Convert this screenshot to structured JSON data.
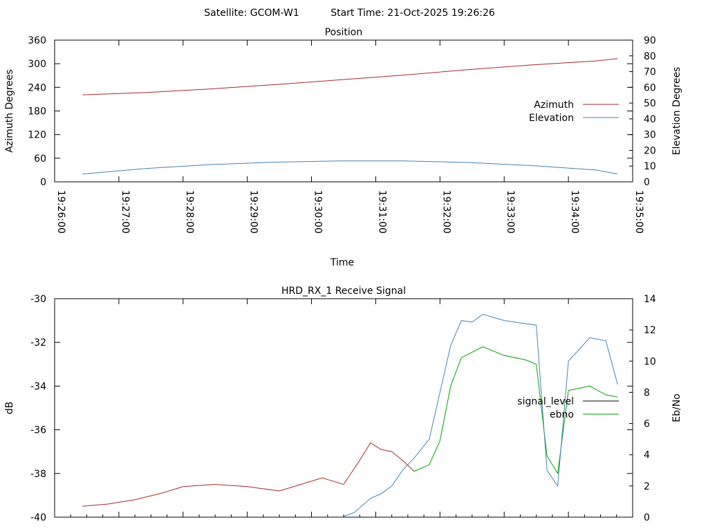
{
  "header": {
    "satellite": "Satellite: GCOM-W1",
    "start_time": "Start Time: 21-Oct-2025 19:26:26"
  },
  "chart_data": [
    {
      "type": "line",
      "title": "Position",
      "xlabel": "Time",
      "ylabel": "Azimuth Degrees",
      "y2label": "Elevation Degrees",
      "x_ticks": [
        "19:26:00",
        "19:27:00",
        "19:28:00",
        "19:29:00",
        "19:30:00",
        "19:31:00",
        "19:32:00",
        "19:33:00",
        "19:34:00",
        "19:35:00"
      ],
      "xlim": [
        "19:26:00",
        "19:35:00"
      ],
      "ylim": [
        0,
        360
      ],
      "y_ticks": [
        0,
        60,
        120,
        180,
        240,
        300,
        360
      ],
      "y2lim": [
        0,
        90
      ],
      "y2_ticks": [
        0,
        10,
        20,
        30,
        40,
        50,
        60,
        70,
        80,
        90
      ],
      "legend_position": "right",
      "series": [
        {
          "name": "Azimuth",
          "axis": "y",
          "color": "#a52a2a",
          "x": [
            "19:26:26",
            "19:27:26",
            "19:28:26",
            "19:29:26",
            "19:30:26",
            "19:31:26",
            "19:32:26",
            "19:33:26",
            "19:34:26",
            "19:34:46"
          ],
          "values": [
            221,
            227,
            236,
            247,
            259,
            271,
            285,
            297,
            307,
            313
          ]
        },
        {
          "name": "Elevation",
          "axis": "y2",
          "color": "#4682b4",
          "x": [
            "19:26:26",
            "19:27:26",
            "19:28:26",
            "19:29:26",
            "19:30:26",
            "19:31:26",
            "19:32:26",
            "19:33:26",
            "19:34:26",
            "19:34:46"
          ],
          "values": [
            5,
            8.5,
            11,
            12.5,
            13.3,
            13.3,
            12.3,
            10.3,
            7.5,
            5
          ]
        }
      ]
    },
    {
      "type": "line",
      "title": "HRD_RX_1 Receive Signal",
      "ylabel": "dB",
      "y2label": "Eb/No",
      "xlim": [
        "19:26:00",
        "19:35:00"
      ],
      "ylim": [
        -40,
        -30
      ],
      "y_ticks": [
        -40,
        -38,
        -36,
        -34,
        -32,
        -30
      ],
      "y2lim": [
        0,
        14
      ],
      "y2_ticks": [
        0,
        2,
        4,
        6,
        8,
        10,
        12,
        14
      ],
      "legend_position": "right",
      "legend": [
        {
          "name": "signal_level",
          "color": "#000000"
        },
        {
          "name": "ebno",
          "color": "#00a000"
        }
      ],
      "series": [
        {
          "name": "signal_level",
          "axis": "y",
          "segment_colors": [
            "#a52a2a",
            "#00a000"
          ],
          "segment_split": "19:31:36",
          "x": [
            "19:26:26",
            "19:26:50",
            "19:27:15",
            "19:27:40",
            "19:28:00",
            "19:28:30",
            "19:29:00",
            "19:29:30",
            "19:29:50",
            "19:30:10",
            "19:30:30",
            "19:30:45",
            "19:30:55",
            "19:31:05",
            "19:31:15",
            "19:31:25",
            "19:31:36",
            "19:31:50",
            "19:32:00",
            "19:32:10",
            "19:32:20",
            "19:32:40",
            "19:33:00",
            "19:33:20",
            "19:33:30",
            "19:33:40",
            "19:33:50",
            "19:34:00",
            "19:34:20",
            "19:34:35",
            "19:34:46"
          ],
          "values": [
            -39.5,
            -39.4,
            -39.2,
            -38.9,
            -38.6,
            -38.5,
            -38.6,
            -38.8,
            -38.5,
            -38.2,
            -38.5,
            -37.4,
            -36.6,
            -36.9,
            -37.0,
            -37.4,
            -37.9,
            -37.6,
            -36.5,
            -34.0,
            -32.7,
            -32.2,
            -32.6,
            -32.8,
            -33.0,
            -37.2,
            -38.0,
            -34.2,
            -34.0,
            -34.4,
            -34.5
          ]
        },
        {
          "name": "ebno",
          "axis": "y2",
          "color": "#4682b4",
          "x": [
            "19:30:28",
            "19:30:40",
            "19:30:55",
            "19:31:05",
            "19:31:15",
            "19:31:25",
            "19:31:36",
            "19:31:50",
            "19:32:00",
            "19:32:10",
            "19:32:20",
            "19:32:30",
            "19:32:40",
            "19:33:00",
            "19:33:20",
            "19:33:30",
            "19:33:40",
            "19:33:50",
            "19:34:00",
            "19:34:20",
            "19:34:35",
            "19:34:46"
          ],
          "values": [
            0,
            0.3,
            1.2,
            1.5,
            2.0,
            3.0,
            3.8,
            5.0,
            8.0,
            11.0,
            12.6,
            12.5,
            13.0,
            12.6,
            12.4,
            12.3,
            3.0,
            2.0,
            10.0,
            11.5,
            11.3,
            8.5
          ]
        }
      ]
    }
  ]
}
